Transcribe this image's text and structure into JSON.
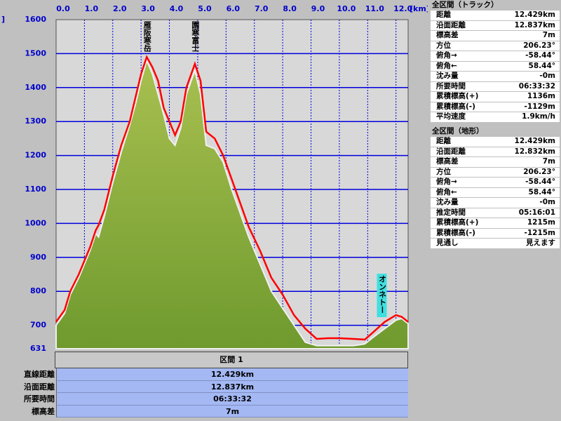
{
  "chart_data": {
    "type": "elevation-profile",
    "ylabel": "]",
    "xlabel": "[km]",
    "xlim": [
      0,
      12.429
    ],
    "ylim": [
      631,
      1600
    ],
    "xticks": [
      {
        "value": 0,
        "label": "0.0"
      },
      {
        "value": 1,
        "label": "1.0"
      },
      {
        "value": 2,
        "label": "2.0"
      },
      {
        "value": 3,
        "label": "3.0"
      },
      {
        "value": 4,
        "label": "4.0"
      },
      {
        "value": 5,
        "label": "5.0"
      },
      {
        "value": 6,
        "label": "6.0"
      },
      {
        "value": 7,
        "label": "7.0"
      },
      {
        "value": 8,
        "label": "8.0"
      },
      {
        "value": 9,
        "label": "9.0"
      },
      {
        "value": 10,
        "label": "10.0"
      },
      {
        "value": 11,
        "label": "11.0"
      },
      {
        "value": 12,
        "label": "12.0"
      }
    ],
    "yticks": [
      631,
      700,
      800,
      900,
      1000,
      1100,
      1200,
      1300,
      1400,
      1500,
      1600
    ],
    "grid": true,
    "x": [
      0,
      0.3,
      0.5,
      0.8,
      1.0,
      1.2,
      1.4,
      1.5,
      1.7,
      2.0,
      2.3,
      2.6,
      2.8,
      3.0,
      3.2,
      3.4,
      3.6,
      3.8,
      4.0,
      4.2,
      4.4,
      4.6,
      4.9,
      5.1,
      5.3,
      5.6,
      5.9,
      6.2,
      6.5,
      6.8,
      7.2,
      7.6,
      8.0,
      8.4,
      8.8,
      9.2,
      9.6,
      10.0,
      10.5,
      10.9,
      11.2,
      11.6,
      12.0,
      12.2,
      12.429
    ],
    "series": [
      {
        "name": "地形",
        "color": "#6f9a2e",
        "values": [
          700,
          735,
          790,
          840,
          880,
          920,
          970,
          960,
          1020,
          1120,
          1210,
          1290,
          1350,
          1420,
          1480,
          1440,
          1380,
          1320,
          1250,
          1230,
          1280,
          1380,
          1450,
          1380,
          1230,
          1220,
          1180,
          1100,
          1030,
          960,
          880,
          800,
          750,
          700,
          650,
          640,
          640,
          640,
          640,
          645,
          665,
          690,
          715,
          720,
          705
        ]
      },
      {
        "name": "トラック",
        "color": "#ff0000",
        "values": [
          710,
          745,
          800,
          850,
          890,
          930,
          980,
          995,
          1040,
          1140,
          1230,
          1300,
          1370,
          1440,
          1490,
          1460,
          1420,
          1340,
          1300,
          1260,
          1300,
          1400,
          1470,
          1420,
          1270,
          1250,
          1200,
          1130,
          1060,
          990,
          920,
          840,
          790,
          730,
          690,
          660,
          662,
          662,
          660,
          658,
          680,
          710,
          730,
          725,
          710
        ]
      }
    ],
    "annotations": [
      {
        "text": "雁阪寒岳",
        "x": 3.2,
        "y": 1490
      },
      {
        "text": "園寒富士",
        "x": 4.9,
        "y": 1470
      },
      {
        "text": "オンネトー",
        "x": 11.5,
        "y": 700
      }
    ]
  },
  "track_panel": {
    "title": "全区間（トラック）",
    "rows": [
      [
        "距離",
        "12.429km"
      ],
      [
        "沿面距離",
        "12.837km"
      ],
      [
        "標高差",
        "7m"
      ],
      [
        "方位",
        "206.23°"
      ],
      [
        "俯角→",
        "-58.44°"
      ],
      [
        "俯角←",
        "58.44°"
      ],
      [
        "沈み量",
        "-0m"
      ],
      [
        "所要時間",
        "06:33:32"
      ],
      [
        "累積標高(+)",
        "1136m"
      ],
      [
        "累積標高(-)",
        "-1129m"
      ],
      [
        "平均速度",
        "1.9km/h"
      ]
    ]
  },
  "terrain_panel": {
    "title": "全区間（地形）",
    "rows": [
      [
        "距離",
        "12.429km"
      ],
      [
        "沿面距離",
        "12.832km"
      ],
      [
        "標高差",
        "7m"
      ],
      [
        "方位",
        "206.23°"
      ],
      [
        "俯角→",
        "-58.44°"
      ],
      [
        "俯角←",
        "58.44°"
      ],
      [
        "沈み量",
        "-0m"
      ],
      [
        "推定時間",
        "05:16:01"
      ],
      [
        "累積標高(+)",
        "1215m"
      ],
      [
        "累積標高(-)",
        "-1215m"
      ],
      [
        "見通し",
        "見えます"
      ]
    ]
  },
  "section_panel": {
    "title": "区間 1",
    "rows": [
      [
        "直線距離",
        "12.429km"
      ],
      [
        "沿面距離",
        "12.837km"
      ],
      [
        "所要時間",
        "06:33:32"
      ],
      [
        "標高差",
        "7m"
      ]
    ]
  }
}
